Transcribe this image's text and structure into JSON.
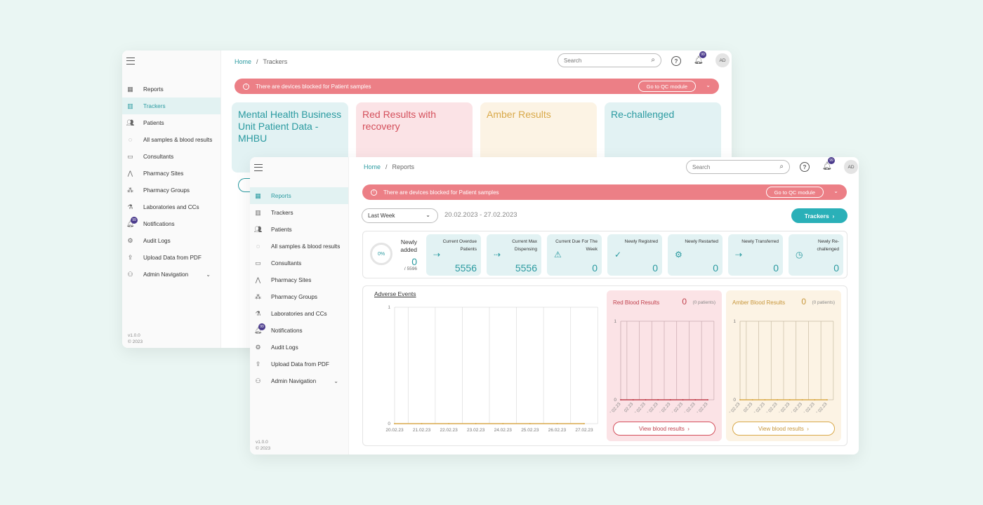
{
  "back": {
    "breadcrumb": {
      "home": "Home",
      "sep": "/",
      "current": "Trackers"
    },
    "search_placeholder": "Search",
    "bell_count": "99",
    "avatar": "AD",
    "alert": {
      "text": "There are devices blocked for Patient samples",
      "button": "Go to QC module"
    },
    "nav": [
      {
        "label": "Reports",
        "icon": "grid-icon"
      },
      {
        "label": "Trackers",
        "icon": "tracker-icon",
        "active": true
      },
      {
        "label": "Patients",
        "icon": "patients-icon"
      },
      {
        "label": "All samples & blood results",
        "icon": "drop-icon"
      },
      {
        "label": "Consultants",
        "icon": "consultants-icon"
      },
      {
        "label": "Pharmacy Sites",
        "icon": "pharmacy-icon"
      },
      {
        "label": "Pharmacy Groups",
        "icon": "groups-icon"
      },
      {
        "label": "Laboratories and CCs",
        "icon": "flask-icon"
      },
      {
        "label": "Notifications",
        "icon": "bell-icon",
        "badge": "99"
      },
      {
        "label": "Audit Logs",
        "icon": "gear-icon"
      },
      {
        "label": "Upload Data from PDF",
        "icon": "upload-icon"
      },
      {
        "label": "Admin Navigation",
        "icon": "admin-icon",
        "chevron": true
      }
    ],
    "version": "v1.0.0",
    "copyright": "© 2023",
    "cards": [
      {
        "title": "Mental Health Business Unit Patient Data - MHBU",
        "style": "teal"
      },
      {
        "title": "Red Results with recovery",
        "style": "red"
      },
      {
        "title": "Amber Results",
        "style": "amber"
      },
      {
        "title": "Re-challenged",
        "style": "teal"
      }
    ]
  },
  "front": {
    "breadcrumb": {
      "home": "Home",
      "sep": "/",
      "current": "Reports"
    },
    "search_placeholder": "Search",
    "bell_count": "99",
    "avatar": "AD",
    "alert": {
      "text": "There are devices blocked for Patient samples",
      "button": "Go to QC module"
    },
    "nav": [
      {
        "label": "Reports",
        "icon": "grid-icon",
        "active": true
      },
      {
        "label": "Trackers",
        "icon": "tracker-icon"
      },
      {
        "label": "Patients",
        "icon": "patients-icon"
      },
      {
        "label": "All samples & blood results",
        "icon": "drop-icon"
      },
      {
        "label": "Consultants",
        "icon": "consultants-icon"
      },
      {
        "label": "Pharmacy Sites",
        "icon": "pharmacy-icon"
      },
      {
        "label": "Pharmacy Groups",
        "icon": "groups-icon"
      },
      {
        "label": "Laboratories and CCs",
        "icon": "flask-icon"
      },
      {
        "label": "Notifications",
        "icon": "bell-icon",
        "badge": "99"
      },
      {
        "label": "Audit Logs",
        "icon": "gear-icon"
      },
      {
        "label": "Upload Data from PDF",
        "icon": "upload-icon"
      },
      {
        "label": "Admin Navigation",
        "icon": "admin-icon",
        "chevron": true
      }
    ],
    "version": "v1.0.0",
    "copyright": "© 2023",
    "period_select": "Last Week",
    "date_range": "20.02.2023 - 27.02.2023",
    "trackers_button": "Trackers",
    "newly_added": {
      "percent": "0%",
      "label": "Newly added",
      "value": "0",
      "total": "/ 5596"
    },
    "stats": [
      {
        "label": "Current Overdue Patients",
        "value": "5556",
        "icon": "user-arrow-icon"
      },
      {
        "label": "Current Max Dispensing",
        "value": "5556",
        "icon": "user-arrow-icon"
      },
      {
        "label": "Current Due For The Week",
        "value": "0",
        "icon": "user-alert-icon"
      },
      {
        "label": "Newly Registred",
        "value": "0",
        "icon": "check-icon"
      },
      {
        "label": "Newly Restarted",
        "value": "0",
        "icon": "user-gear-icon"
      },
      {
        "label": "Newly Transferred",
        "value": "0",
        "icon": "user-arrow-icon"
      },
      {
        "label": "Newly Re-challenged",
        "value": "0",
        "icon": "users-clock-icon"
      }
    ],
    "adverse_title": "Adverse Events",
    "red_blood": {
      "title": "Red Blood Results",
      "value": "0",
      "patients": "(0 patients)",
      "button": "View blood results"
    },
    "amber_blood": {
      "title": "Amber Blood Results",
      "value": "0",
      "patients": "(0 patients)",
      "button": "View blood results"
    },
    "colors": {
      "teal": "#2a9aa0",
      "alert": "#ec7f86",
      "red_line": "#c0414d",
      "amber_line": "#d9a94a"
    }
  },
  "chart_data": [
    {
      "type": "line",
      "title": "Adverse Events",
      "categories": [
        "20.02.23",
        "21.02.23",
        "22.02.23",
        "23.02.23",
        "24.02.23",
        "25.02.23",
        "26.02.23",
        "27.02.23"
      ],
      "series": [
        {
          "values": [
            0,
            0,
            0,
            0,
            0,
            0,
            0,
            0
          ]
        }
      ],
      "ylim": [
        0,
        1
      ],
      "yticks": [
        "0",
        "1"
      ],
      "grid": true
    },
    {
      "type": "line",
      "title": "Red Blood Results",
      "categories": [
        "20.02.23",
        "21.02.23",
        "22.02.23",
        "23.02.23",
        "24.02.23",
        "25.02.23",
        "26.02.23",
        "27.02.23"
      ],
      "series": [
        {
          "values": [
            0,
            0,
            0,
            0,
            0,
            0,
            0,
            0
          ]
        }
      ],
      "ylim": [
        0,
        1
      ],
      "yticks": [
        "0",
        "1"
      ],
      "grid": true
    },
    {
      "type": "line",
      "title": "Amber Blood Results",
      "categories": [
        "20.02.23",
        "21.02.23",
        "22.02.23",
        "23.02.23",
        "24.02.23",
        "25.02.23",
        "26.02.23",
        "27.02.23"
      ],
      "series": [
        {
          "values": [
            0,
            0,
            0,
            0,
            0,
            0,
            0,
            0
          ]
        }
      ],
      "ylim": [
        0,
        1
      ],
      "yticks": [
        "0",
        "1"
      ],
      "grid": true
    }
  ]
}
